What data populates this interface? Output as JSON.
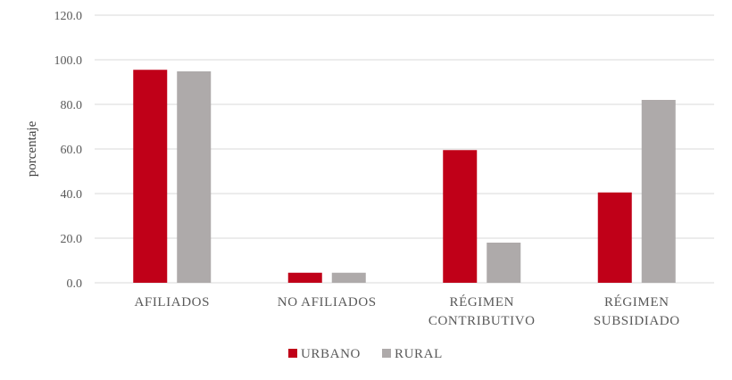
{
  "chart_data": {
    "type": "bar",
    "title": "",
    "ylabel": "porcentaje",
    "xlabel": "",
    "ylim": [
      0,
      120
    ],
    "yticks": [
      "0.0",
      "20.0",
      "40.0",
      "60.0",
      "80.0",
      "100.0",
      "120.0"
    ],
    "categories": [
      [
        "AFILIADOS"
      ],
      [
        "NO AFILIADOS"
      ],
      [
        "RÉGIMEN",
        "CONTRIBUTIVO"
      ],
      [
        "RÉGIMEN",
        "SUBSIDIADO"
      ]
    ],
    "series": [
      {
        "name": "URBANO",
        "color": "#c00018",
        "values": [
          95.5,
          4.5,
          59.5,
          40.5
        ]
      },
      {
        "name": "RURAL",
        "color": "#aeaaaa",
        "values": [
          94.8,
          4.5,
          18.0,
          82.0
        ]
      }
    ],
    "grid": true,
    "legend_position": "bottom"
  }
}
